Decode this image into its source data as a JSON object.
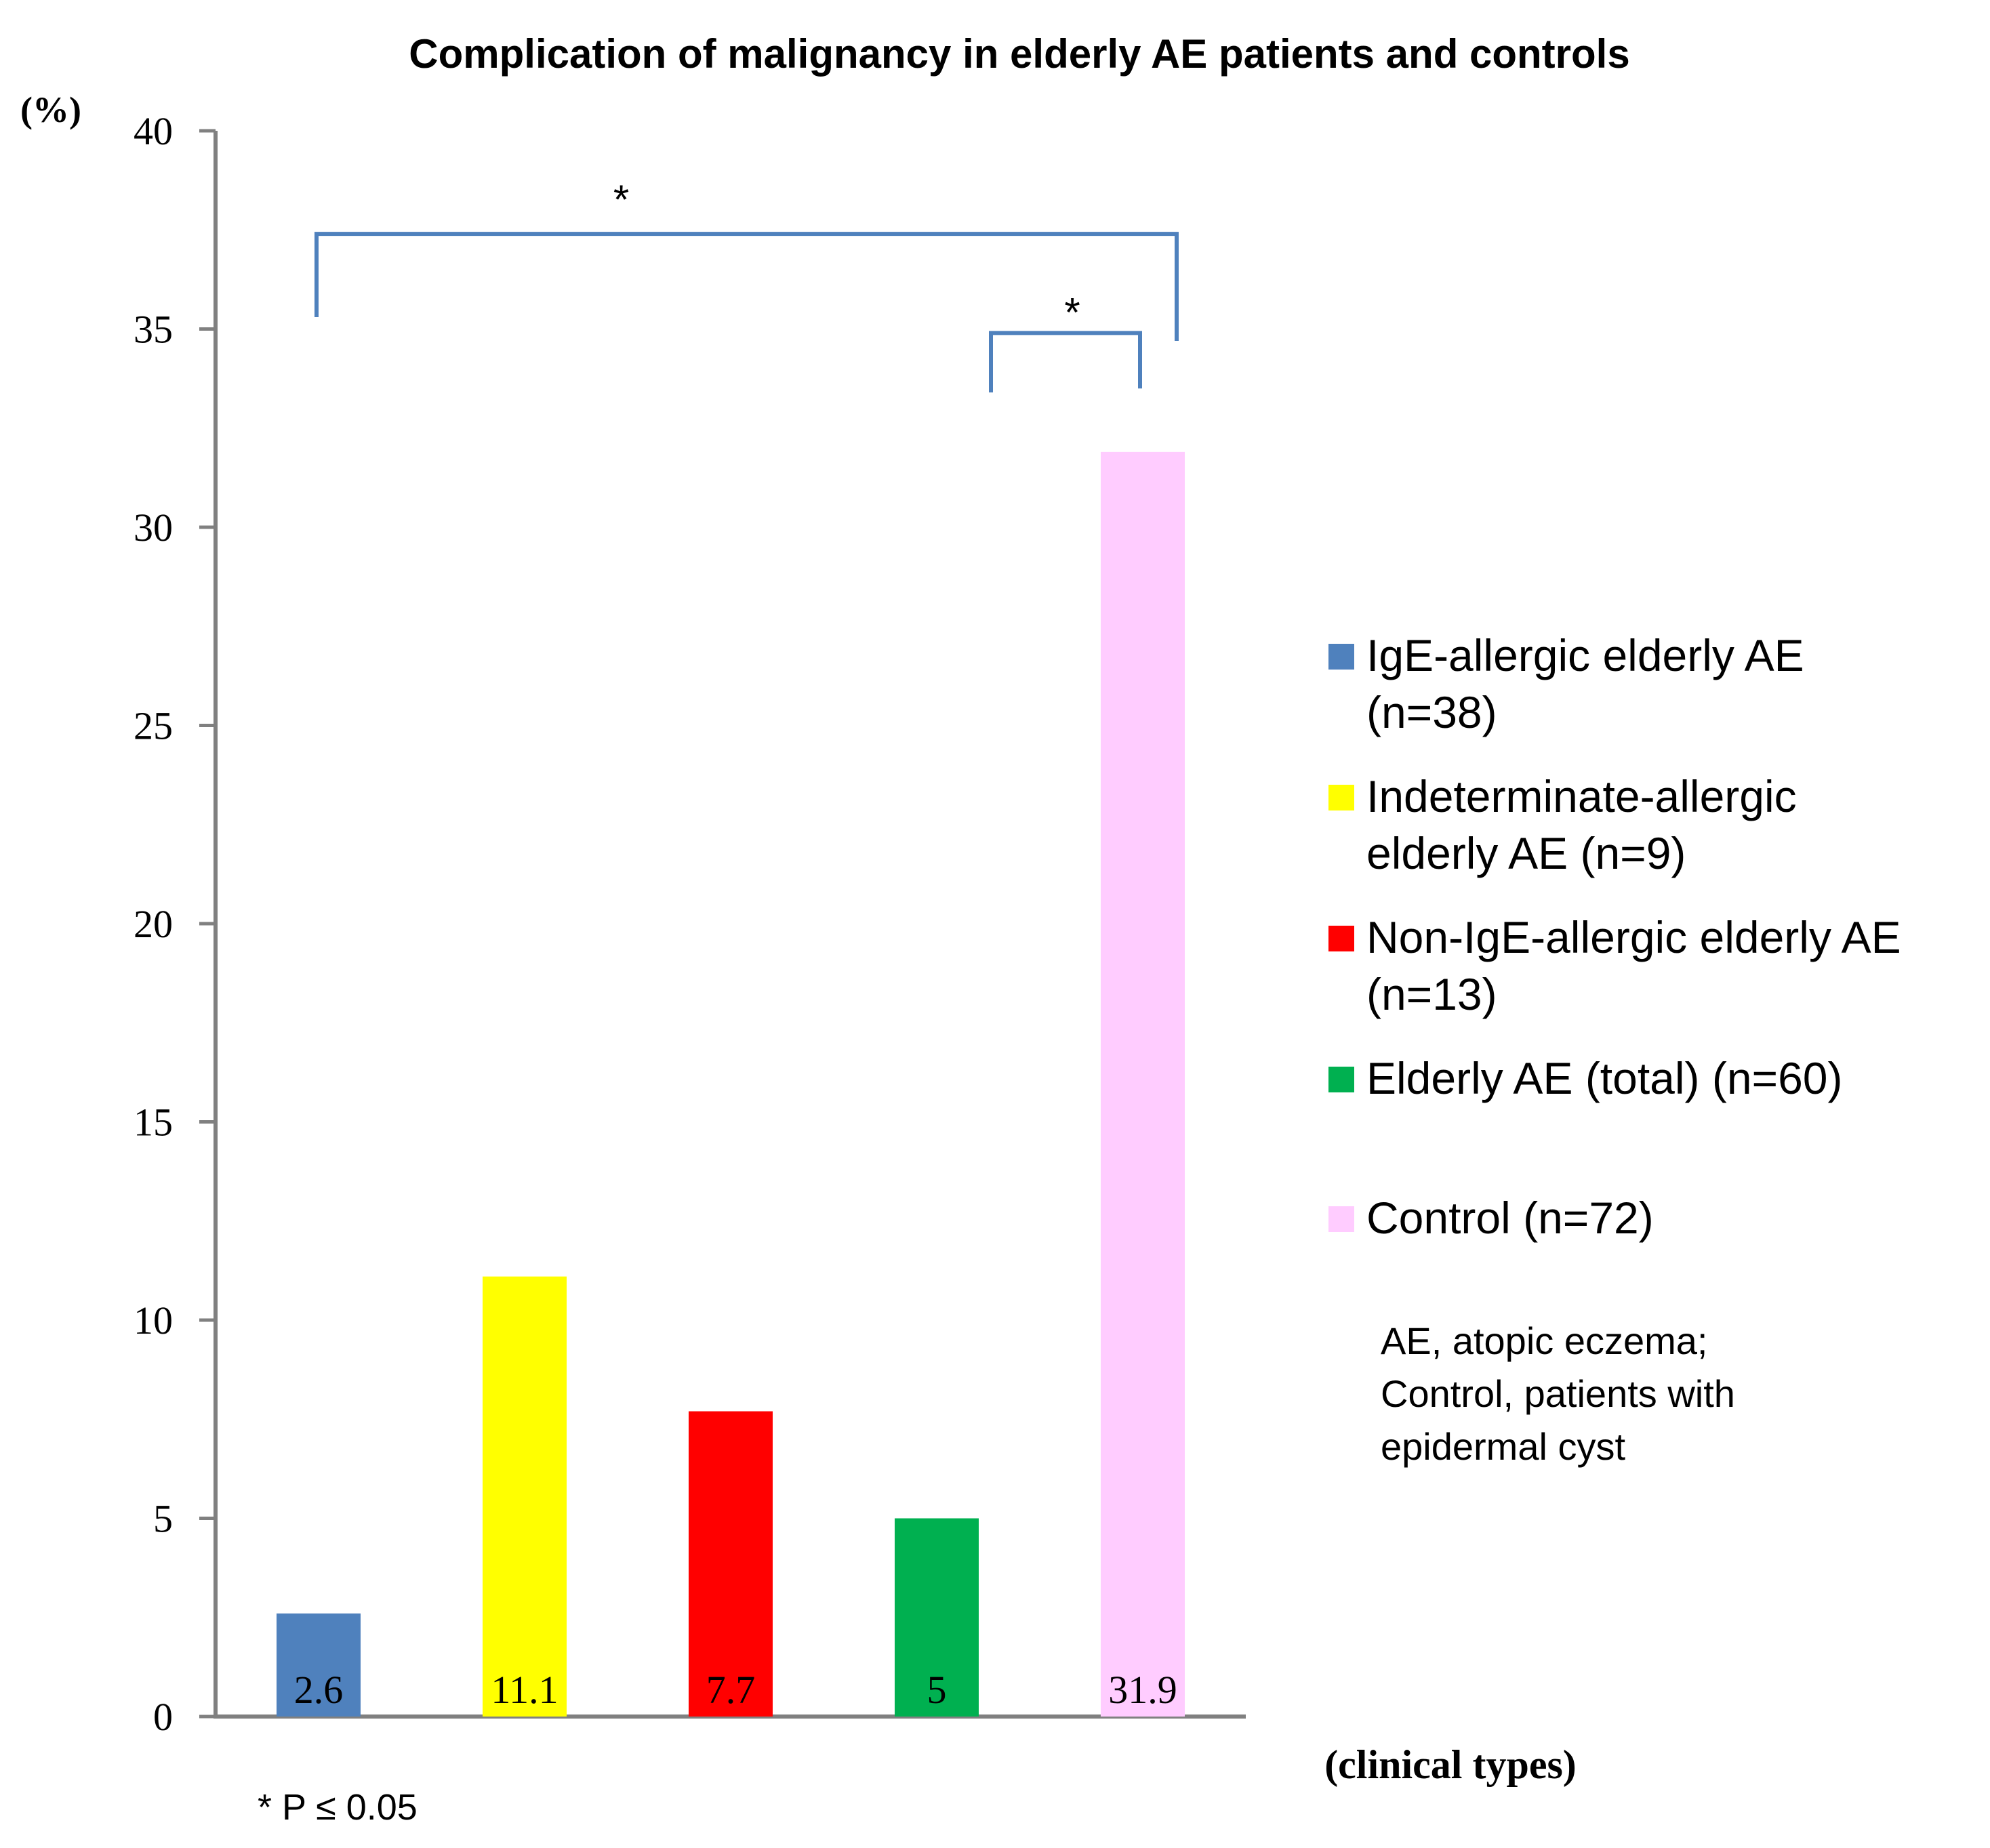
{
  "chart_data": {
    "type": "bar",
    "title": "Complication of malignancy in elderly AE patients and controls",
    "ylabel": "(%)",
    "xlabel": "(clinical types)",
    "ylim": [
      0,
      40
    ],
    "yticks": [
      "0",
      "5",
      "10",
      "15",
      "20",
      "25",
      "30",
      "35",
      "40"
    ],
    "grid": false,
    "categories": [
      "IgE-allergic elderly AE (n=38)",
      "Indeterminate-allergic elderly AE (n=9)",
      "Non-IgE-allergic elderly AE (n=13)",
      "Elderly AE (total) (n=60)",
      "Control (n=72)"
    ],
    "values": [
      2.6,
      11.1,
      7.7,
      5,
      31.9
    ],
    "value_labels": [
      "2.6",
      "11.1",
      "7.7",
      "5",
      "31.9"
    ],
    "colors": [
      "#4F81BD",
      "#FFFF00",
      "#FF0000",
      "#00B050",
      "#FFCCFF"
    ],
    "legend": {
      "position": "right",
      "entries": [
        {
          "lines": [
            "IgE-allergic elderly AE",
            "(n=38)"
          ],
          "color": "#4F81BD"
        },
        {
          "lines": [
            "Indeterminate-allergic",
            "elderly AE (n=9)"
          ],
          "color": "#FFFF00"
        },
        {
          "lines": [
            "Non-IgE-allergic elderly AE",
            "(n=13)"
          ],
          "color": "#FF0000"
        },
        {
          "lines": [
            "Elderly AE (total) (n=60)"
          ],
          "color": "#00B050"
        },
        {
          "lines": [
            "Control (n=72)"
          ],
          "color": "#FFCCFF"
        }
      ]
    },
    "annotations": {
      "note_lines": [
        "AE, atopic eczema;",
        "Control, patients with",
        "epidermal cyst"
      ],
      "significance_footnote": "* P ≤ 0.05",
      "brackets": [
        {
          "from": 0,
          "to": 4,
          "label": "*"
        },
        {
          "from": 3,
          "to": 4,
          "label": "*"
        }
      ]
    },
    "bracket_color": "#4F81BD",
    "axis_color": "#808080"
  }
}
